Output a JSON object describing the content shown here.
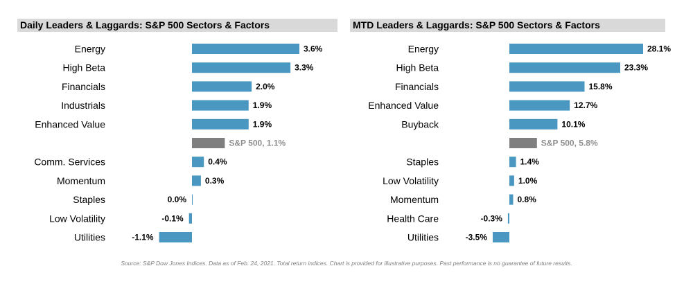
{
  "chart_data": [
    {
      "type": "bar",
      "orientation": "horizontal",
      "title": "Daily Leaders & Laggards: S&P 500 Sectors & Factors",
      "categories": [
        "Energy",
        "High Beta",
        "Financials",
        "Industrials",
        "Enhanced Value",
        "S&P 500",
        "Comm. Services",
        "Momentum",
        "Staples",
        "Low Volatility",
        "Utilities"
      ],
      "values": [
        3.6,
        3.3,
        2.0,
        1.9,
        1.9,
        1.1,
        0.4,
        0.3,
        0.0,
        -0.1,
        -1.1
      ],
      "value_labels": [
        "3.6%",
        "3.3%",
        "2.0%",
        "1.9%",
        "1.9%",
        "S&P 500, 1.1%",
        "0.4%",
        "0.3%",
        "0.0%",
        "-0.1%",
        "-1.1%"
      ],
      "benchmark_index": 5,
      "xlim": [
        -1.1,
        3.6
      ],
      "colors": {
        "bar": "#4a98c2",
        "benchmark": "#7f7f7f"
      }
    },
    {
      "type": "bar",
      "orientation": "horizontal",
      "title": "MTD Leaders & Laggards: S&P 500 Sectors & Factors",
      "categories": [
        "Energy",
        "High Beta",
        "Financials",
        "Enhanced Value",
        "Buyback",
        "S&P 500",
        "Staples",
        "Low Volatility",
        "Momentum",
        "Health Care",
        "Utilities"
      ],
      "values": [
        28.1,
        23.3,
        15.8,
        12.7,
        10.1,
        5.8,
        1.4,
        1.0,
        0.8,
        -0.3,
        -3.5
      ],
      "value_labels": [
        "28.1%",
        "23.3%",
        "15.8%",
        "12.7%",
        "10.1%",
        "S&P 500, 5.8%",
        "1.4%",
        "1.0%",
        "0.8%",
        "-0.3%",
        "-3.5%"
      ],
      "benchmark_index": 5,
      "xlim": [
        -3.5,
        28.1
      ],
      "colors": {
        "bar": "#4a98c2",
        "benchmark": "#7f7f7f"
      }
    }
  ],
  "source_note": "Source: S&P Dow Jones Indices. Data as of Feb. 24, 2021. Total return indices. Chart is provided for illustrative purposes. Past performance is no guarantee of future results."
}
